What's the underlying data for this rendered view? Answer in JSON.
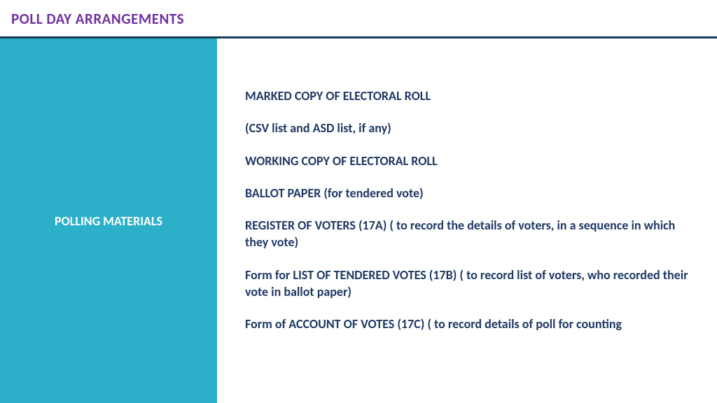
{
  "header": {
    "title": "POLL DAY ARRANGEMENTS"
  },
  "left": {
    "label": "POLLING MATERIALS"
  },
  "items": [
    "MARKED COPY OF ELECTORAL ROLL",
    "(CSV list  and ASD list, if any)",
    "WORKING COPY OF ELECTORAL ROLL",
    "BALLOT PAPER (for tendered vote)",
    "REGISTER OF VOTERS (17A)  ( to record the details of voters, in a sequence in which they vote)",
    "Form for LIST OF TENDERED VOTES (17B) ( to record list of voters, who recorded their vote in ballot paper)",
    "Form of ACCOUNT OF VOTES (17C)  ( to record details of poll for counting"
  ],
  "colors": {
    "header_title": "#7030a0",
    "header_border": "#1a3a5c",
    "left_bg": "#2cb0c9",
    "left_text": "#ffffff",
    "item_text": "#1f3864",
    "page_bg": "#ffffff"
  }
}
